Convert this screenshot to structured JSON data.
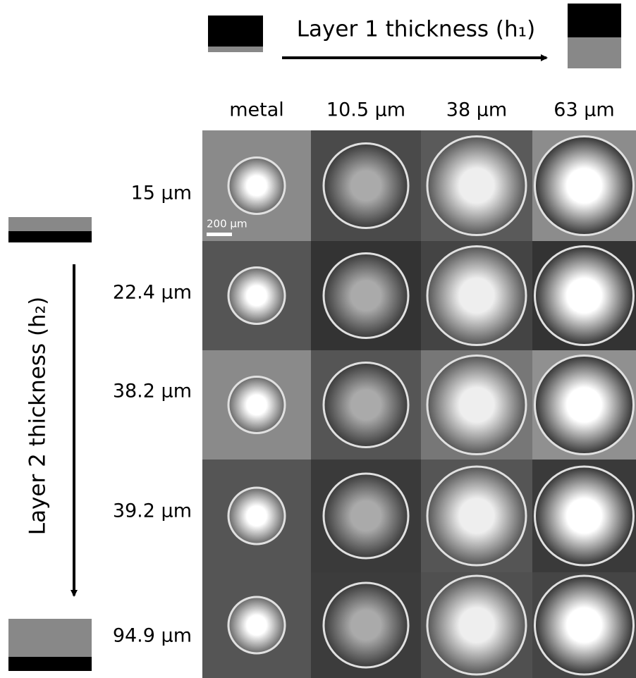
{
  "header": {
    "title": "Layer 1 thickness (h₁)"
  },
  "side": {
    "title": "Layer 2 thickness (h₂)"
  },
  "columns": [
    "metal",
    "10.5 μm",
    "38 μm",
    "63 μm"
  ],
  "rows": [
    "15 μm",
    "22.4 μm",
    "38.2 μm",
    "39.2 μm",
    "94.9 μm"
  ],
  "scale_bar": "200 μm"
}
